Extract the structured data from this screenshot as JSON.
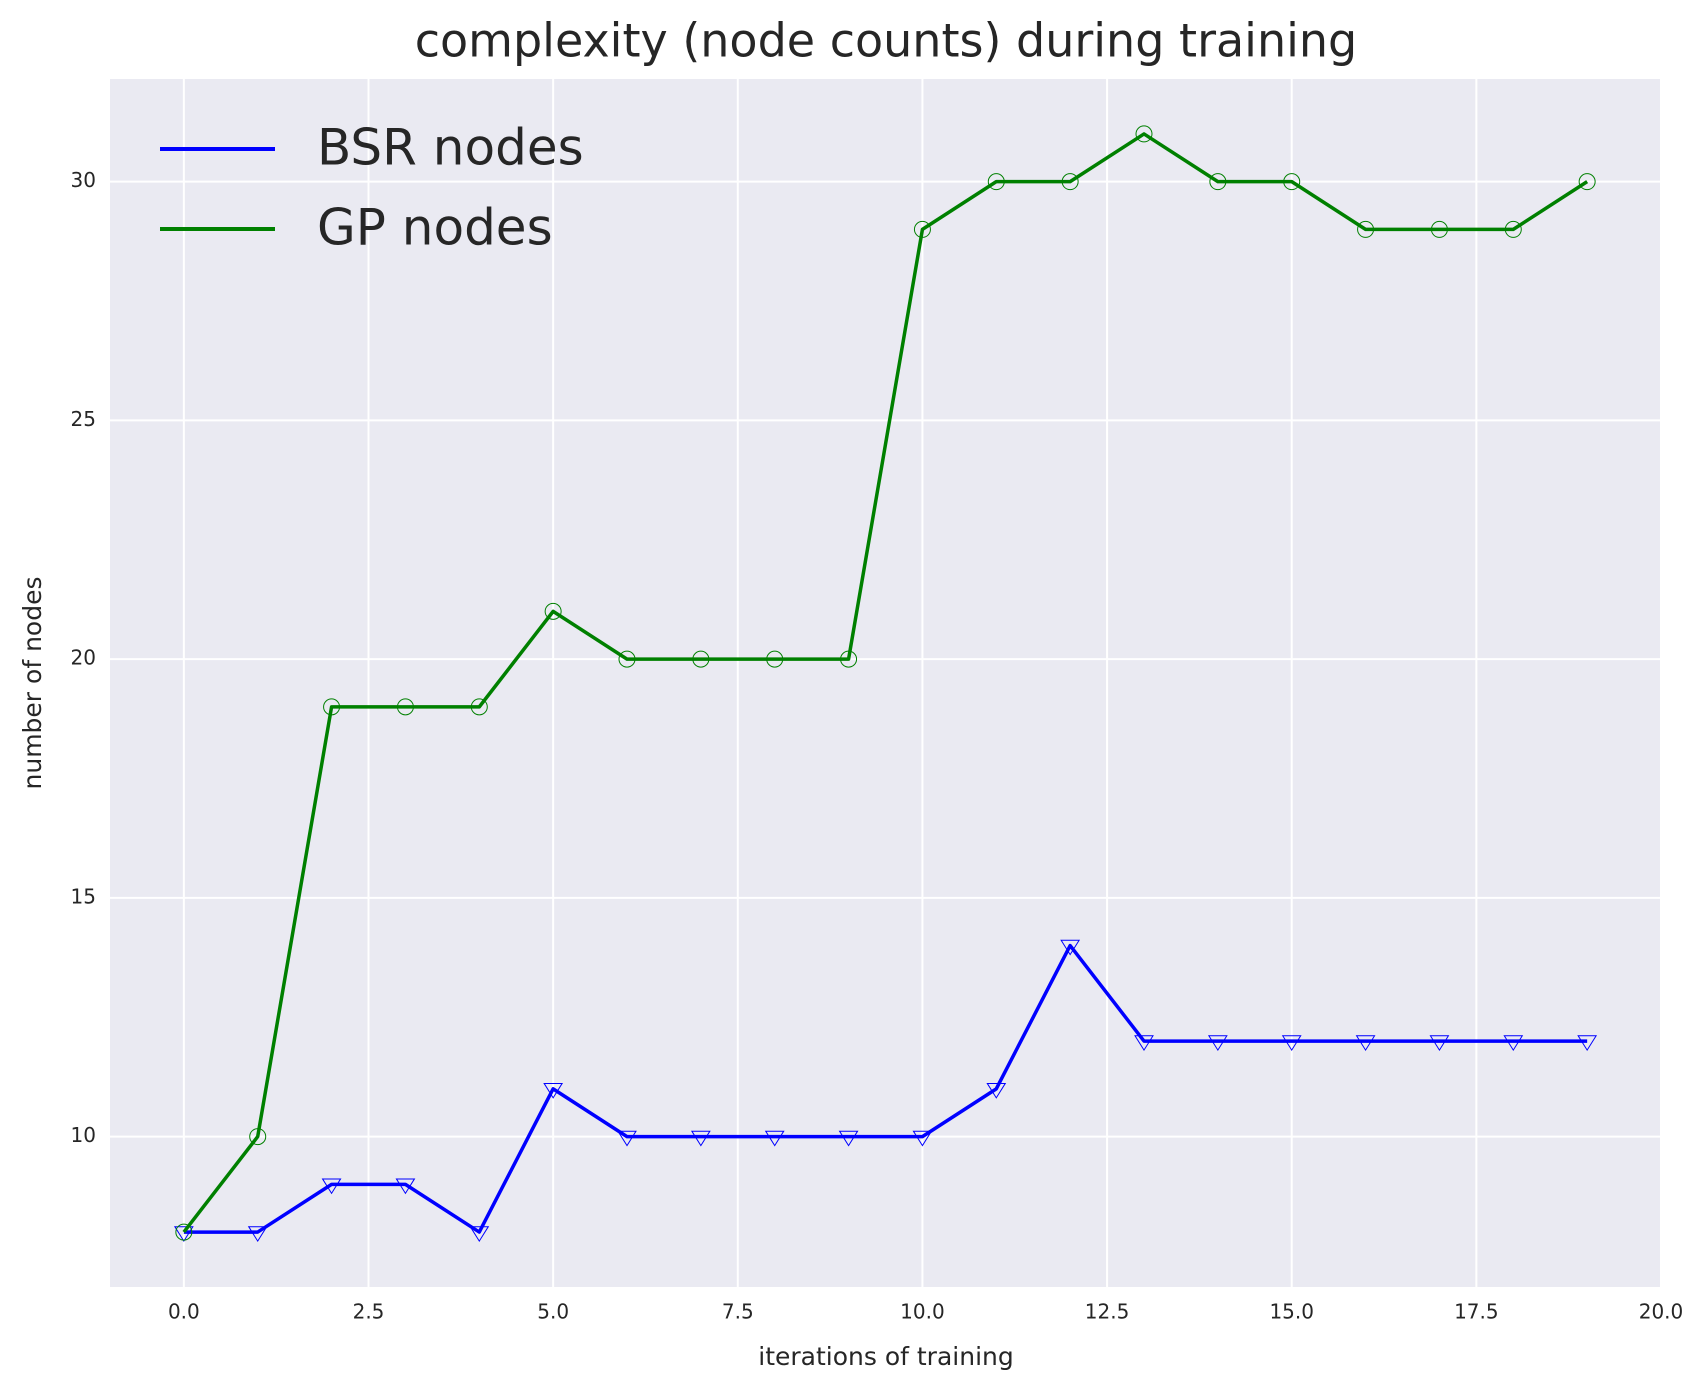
{
  "chart_data": {
    "type": "line",
    "title": "complexity (node counts) during training",
    "xlabel": "iterations of training",
    "ylabel": "number of nodes",
    "x": [
      0,
      1,
      2,
      3,
      4,
      5,
      6,
      7,
      8,
      9,
      10,
      11,
      12,
      13,
      14,
      15,
      16,
      17,
      18,
      19
    ],
    "series": [
      {
        "name": "BSR nodes",
        "color": "#0000ff",
        "marker": "triangle-down",
        "values": [
          8,
          8,
          9,
          9,
          8,
          11,
          10,
          10,
          10,
          10,
          10,
          11,
          14,
          12,
          12,
          12,
          12,
          12,
          12,
          12
        ]
      },
      {
        "name": "GP nodes",
        "color": "#008000",
        "marker": "circle",
        "values": [
          8,
          10,
          19,
          19,
          19,
          21,
          20,
          20,
          20,
          20,
          29,
          30,
          30,
          31,
          30,
          30,
          29,
          29,
          29,
          30
        ]
      }
    ],
    "xlim": [
      -1,
      20
    ],
    "ylim": [
      6.85,
      32.15
    ],
    "xticks": [
      {
        "value": 0,
        "label": "0.0"
      },
      {
        "value": 2.5,
        "label": "2.5"
      },
      {
        "value": 5,
        "label": "5.0"
      },
      {
        "value": 7.5,
        "label": "7.5"
      },
      {
        "value": 10,
        "label": "10.0"
      },
      {
        "value": 12.5,
        "label": "12.5"
      },
      {
        "value": 15,
        "label": "15.0"
      },
      {
        "value": 17.5,
        "label": "17.5"
      },
      {
        "value": 20,
        "label": "20.0"
      }
    ],
    "yticks": [
      10,
      15,
      20,
      25,
      30
    ],
    "grid": true,
    "legend": "upper-left"
  }
}
